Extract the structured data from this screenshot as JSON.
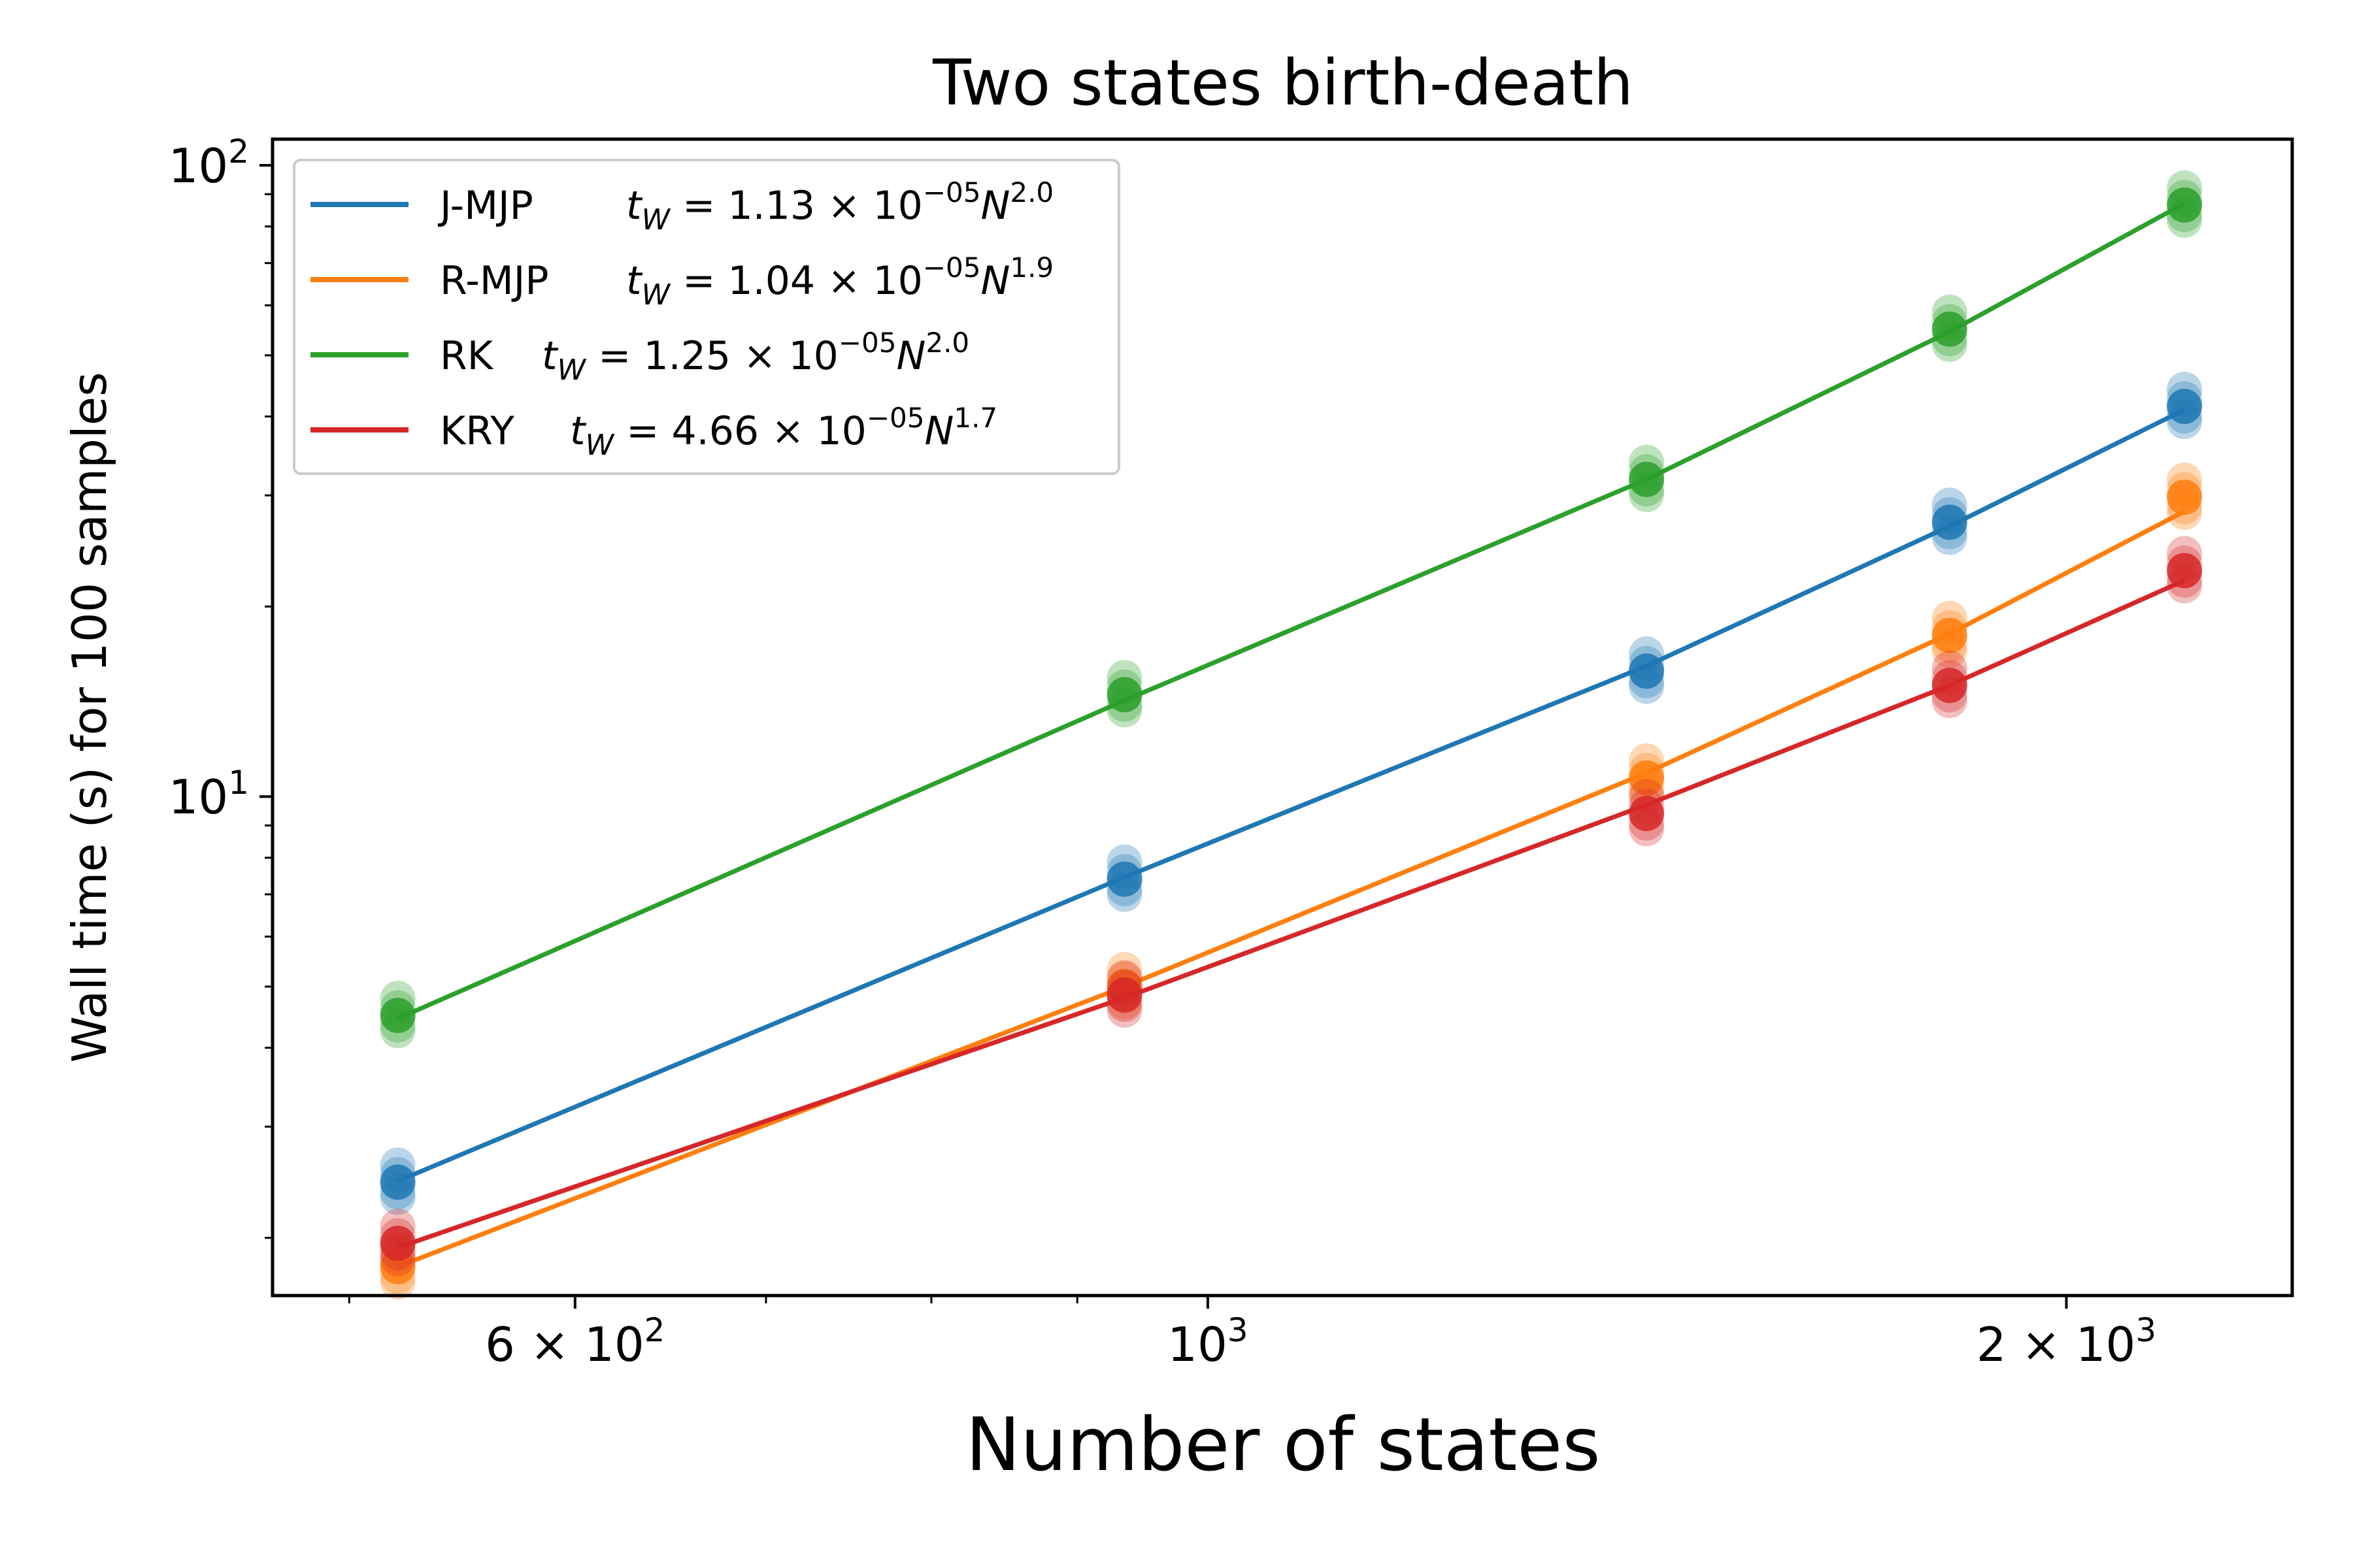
{
  "chart_data": {
    "type": "line",
    "title": "Two states birth-death",
    "xlabel": "Number of states",
    "ylabel": "Wall time (s) for 100 samples",
    "xscale": "log",
    "yscale": "log",
    "xlim": [
      470,
      2400
    ],
    "ylim": [
      1.62,
      110
    ],
    "x_ticks": [
      {
        "value": 600,
        "mantissa": "6",
        "exponent": "2"
      },
      {
        "value": 1000,
        "mantissa": "",
        "exponent": "3"
      },
      {
        "value": 2000,
        "mantissa": "2",
        "exponent": "3"
      }
    ],
    "y_ticks": [
      {
        "value": 10,
        "exponent": "1"
      },
      {
        "value": 100,
        "exponent": "2"
      }
    ],
    "x": [
      520,
      935,
      1425,
      1820,
      2200
    ],
    "legend_position": "top-left",
    "series": [
      {
        "name": "J-MJP",
        "color": "#1f77b4",
        "formula_coef": "1.13",
        "formula_exp10": "−05",
        "formula_power": "2.0",
        "values": [
          2.45,
          7.4,
          15.8,
          27.2,
          41.5
        ],
        "fit": [
          2.46,
          7.45,
          16.1,
          26.8,
          41.0
        ]
      },
      {
        "name": "R-MJP",
        "color": "#ff7f0e",
        "formula_coef": "1.04",
        "formula_exp10": "−05",
        "formula_power": "1.9",
        "values": [
          1.8,
          5.0,
          10.7,
          18.0,
          29.8
        ],
        "fit": [
          1.8,
          5.0,
          10.9,
          18.1,
          28.3
        ]
      },
      {
        "name": "RK",
        "color": "#2ca02c",
        "formula_coef": "1.25",
        "formula_exp10": "−05",
        "formula_power": "2.0",
        "values": [
          4.5,
          14.5,
          31.8,
          55.0,
          86.5
        ],
        "fit": [
          4.45,
          14.2,
          31.8,
          54.5,
          87.0
        ]
      },
      {
        "name": "KRY",
        "color": "#d62728",
        "formula_coef": "4.66",
        "formula_exp10": "−05",
        "formula_power": "1.7",
        "values": [
          1.96,
          4.85,
          9.4,
          15.0,
          22.8
        ],
        "fit": [
          1.93,
          4.8,
          9.7,
          15.0,
          22.0
        ]
      }
    ]
  }
}
